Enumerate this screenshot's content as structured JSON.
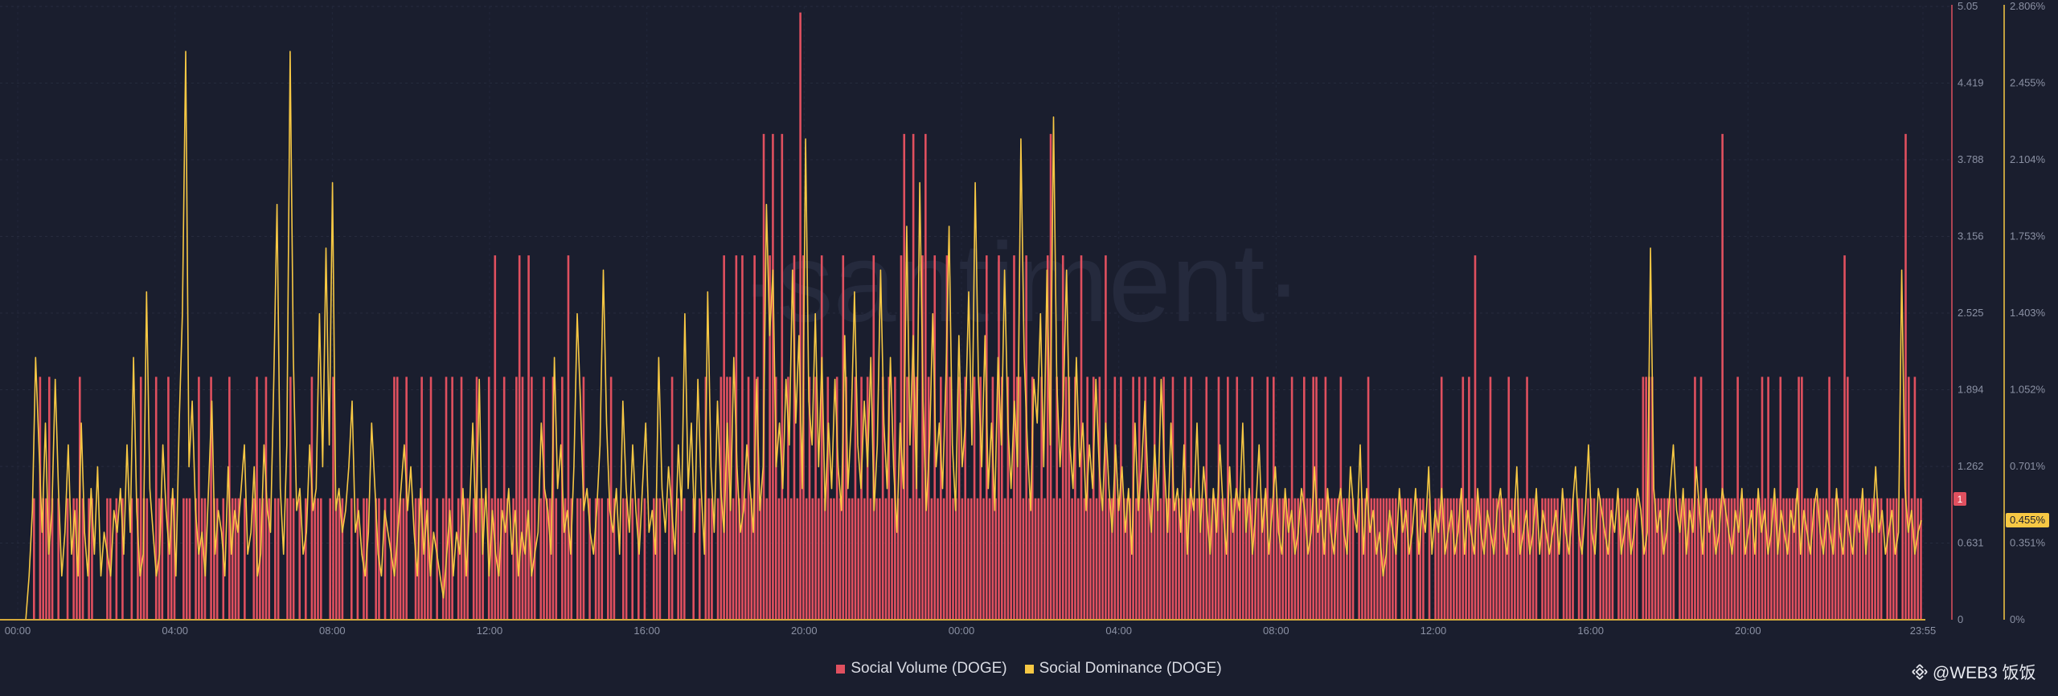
{
  "chart_data": {
    "type": "bar+line",
    "watermark": "·santiment·",
    "x_ticks": [
      "00:00",
      "04:00",
      "08:00",
      "12:00",
      "16:00",
      "20:00",
      "00:00",
      "04:00",
      "08:00",
      "12:00",
      "16:00",
      "20:00",
      "23:55"
    ],
    "left_axis": {
      "ticks": [
        "0",
        "0.631",
        "1.262",
        "1.894",
        "2.525",
        "3.156",
        "3.788",
        "4.419",
        "5.05"
      ],
      "range": [
        0,
        5.05
      ]
    },
    "right_axis": {
      "ticks": [
        "0%",
        "0.351%",
        "0.701%",
        "1.052%",
        "1.403%",
        "1.753%",
        "2.104%",
        "2.455%",
        "2.806%"
      ],
      "range": [
        0,
        2.806
      ]
    },
    "current_values": {
      "volume": "1",
      "dominance": "0.455%"
    },
    "series": [
      {
        "name": "Social Volume (DOGE)",
        "color": "#e0505f",
        "type": "bar",
        "values": [
          0,
          0,
          0,
          0,
          0,
          1,
          0,
          2,
          1,
          1,
          2,
          1,
          0,
          1,
          0,
          0,
          1,
          0,
          1,
          1,
          2,
          1,
          0,
          1,
          1,
          0,
          0,
          0,
          0,
          1,
          1,
          0,
          1,
          0,
          1,
          0,
          0,
          1,
          0,
          1,
          2,
          1,
          1,
          0,
          0,
          2,
          1,
          1,
          0,
          2,
          1,
          1,
          0,
          0,
          1,
          1,
          1,
          0,
          1,
          2,
          1,
          1,
          0,
          2,
          1,
          1,
          0,
          1,
          0,
          2,
          1,
          1,
          1,
          0,
          1,
          0,
          0,
          1,
          2,
          1,
          1,
          2,
          1,
          0,
          1,
          1,
          0,
          0,
          1,
          2,
          1,
          0,
          1,
          0,
          1,
          0,
          2,
          1,
          1,
          1,
          0,
          0,
          1,
          2,
          1,
          1,
          1,
          0,
          0,
          1,
          0,
          1,
          0,
          1,
          1,
          0,
          0,
          1,
          1,
          0,
          1,
          0,
          1,
          2,
          2,
          1,
          1,
          2,
          0,
          0,
          1,
          1,
          2,
          1,
          1,
          2,
          0,
          1,
          0,
          1,
          2,
          1,
          2,
          0,
          1,
          2,
          1,
          1,
          0,
          1,
          2,
          1,
          1,
          0,
          2,
          1,
          3,
          1,
          1,
          2,
          1,
          0,
          1,
          2,
          3,
          2,
          1,
          3,
          2,
          1,
          0,
          1,
          2,
          1,
          1,
          2,
          1,
          0,
          2,
          1,
          3,
          1,
          0,
          1,
          1,
          2,
          0,
          1,
          0,
          1,
          1,
          1,
          0,
          1,
          2,
          1,
          0,
          0,
          1,
          1,
          0,
          1,
          0,
          1,
          0,
          1,
          0,
          0,
          1,
          1,
          1,
          0,
          0,
          1,
          2,
          0,
          1,
          1,
          1,
          0,
          0,
          1,
          0,
          1,
          0,
          2,
          1,
          1,
          0,
          1,
          2,
          3,
          2,
          2,
          1,
          3,
          1,
          3,
          1,
          2,
          1,
          3,
          2,
          1,
          4,
          1,
          3,
          4,
          2,
          1,
          4,
          1,
          2,
          1,
          3,
          1,
          5,
          3,
          1,
          2,
          1,
          2,
          1,
          3,
          1,
          2,
          1,
          1,
          2,
          1,
          3,
          2,
          1,
          1,
          2,
          1,
          2,
          1,
          2,
          1,
          3,
          1,
          1,
          2,
          1,
          2,
          1,
          2,
          1,
          3,
          4,
          2,
          1,
          4,
          2,
          1,
          3,
          4,
          2,
          1,
          3,
          1,
          2,
          1,
          3,
          2,
          1,
          1,
          2,
          1,
          2,
          1,
          1,
          2,
          1,
          2,
          1,
          3,
          1,
          2,
          1,
          3,
          2,
          1,
          2,
          1,
          3,
          2,
          2,
          1,
          3,
          1,
          2,
          1,
          1,
          2,
          1,
          3,
          4,
          1,
          2,
          1,
          3,
          2,
          2,
          1,
          2,
          1,
          3,
          1,
          2,
          1,
          2,
          1,
          2,
          1,
          3,
          1,
          1,
          2,
          1,
          2,
          1,
          1,
          1,
          2,
          1,
          2,
          1,
          2,
          1,
          1,
          2,
          1,
          1,
          2,
          1,
          1,
          2,
          1,
          1,
          1,
          2,
          1,
          2,
          1,
          1,
          1,
          1,
          2,
          1,
          1,
          1,
          2,
          1,
          1,
          2,
          1,
          1,
          2,
          1,
          1,
          1,
          1,
          2,
          1,
          1,
          1,
          1,
          2,
          1,
          2,
          1,
          1,
          1,
          1,
          1,
          2,
          1,
          1,
          1,
          2,
          1,
          1,
          2,
          2,
          1,
          1,
          2,
          1,
          1,
          1,
          1,
          2,
          1,
          1,
          1,
          1,
          0,
          1,
          1,
          1,
          2,
          1,
          1,
          1,
          1,
          1,
          1,
          1,
          1,
          1,
          0,
          1,
          1,
          1,
          1,
          0,
          1,
          1,
          1,
          0,
          1,
          0,
          1,
          1,
          2,
          1,
          1,
          1,
          1,
          1,
          1,
          2,
          1,
          2,
          1,
          3,
          1,
          1,
          1,
          1,
          2,
          1,
          1,
          1,
          1,
          1,
          2,
          1,
          1,
          1,
          1,
          1,
          2,
          1,
          1,
          1,
          0,
          1,
          1,
          1,
          1,
          1,
          1,
          0,
          1,
          1,
          1,
          1,
          0,
          1,
          1,
          0,
          1,
          1,
          1,
          0,
          1,
          1,
          1,
          1,
          1,
          0,
          1,
          1,
          1,
          1,
          1,
          1,
          1,
          0,
          2,
          2,
          2,
          2,
          1,
          1,
          1,
          1,
          1,
          1,
          1,
          0,
          1,
          1,
          1,
          1,
          1,
          2,
          1,
          2,
          1,
          1,
          1,
          1,
          1,
          1,
          4,
          1,
          1,
          1,
          1,
          2,
          1,
          1,
          1,
          1,
          1,
          1,
          1,
          2,
          1,
          2,
          1,
          1,
          1,
          2,
          1,
          1,
          1,
          1,
          1,
          2,
          2,
          1,
          1,
          1,
          1,
          1,
          1,
          1,
          1,
          2,
          1,
          1,
          1,
          1,
          3,
          2,
          1,
          1,
          1,
          1,
          1,
          1,
          1,
          1,
          1,
          1,
          1,
          0,
          1,
          1,
          1,
          1,
          0,
          1,
          4,
          2,
          1,
          2,
          1,
          1
        ]
      },
      {
        "name": "Social Dominance (DOGE)",
        "color": "#f7c844",
        "type": "line",
        "values": [
          0,
          0,
          0,
          0.2,
          0.5,
          1.2,
          0.8,
          0.4,
          0.9,
          0.3,
          0.5,
          1.1,
          0.6,
          0.2,
          0.4,
          0.8,
          0.3,
          0.5,
          0.2,
          0.9,
          0.4,
          0.2,
          0.6,
          0.3,
          0.7,
          0.2,
          0.4,
          0.3,
          0.2,
          0.5,
          0.4,
          0.6,
          0.3,
          0.8,
          0.4,
          1.2,
          0.5,
          0.2,
          0.3,
          1.5,
          0.6,
          0.4,
          0.2,
          0.3,
          0.8,
          0.5,
          0.3,
          0.6,
          0.2,
          0.9,
          1.4,
          2.6,
          0.7,
          1.0,
          0.5,
          0.3,
          0.4,
          0.2,
          0.6,
          1.0,
          0.3,
          0.5,
          0.4,
          0.2,
          0.7,
          0.3,
          0.5,
          0.4,
          0.6,
          0.8,
          0.3,
          0.4,
          0.7,
          0.2,
          0.3,
          0.8,
          0.5,
          0.4,
          1.1,
          1.9,
          0.6,
          0.3,
          0.8,
          2.6,
          1.2,
          0.5,
          0.6,
          0.3,
          0.4,
          0.8,
          0.5,
          0.6,
          1.4,
          0.7,
          1.7,
          0.8,
          2.0,
          0.5,
          0.6,
          0.4,
          0.5,
          0.7,
          1.0,
          0.4,
          0.5,
          0.3,
          0.2,
          0.4,
          0.9,
          0.6,
          0.3,
          0.2,
          0.5,
          0.4,
          0.3,
          0.2,
          0.4,
          0.6,
          0.8,
          0.5,
          0.7,
          0.4,
          0.2,
          0.6,
          0.3,
          0.5,
          0.2,
          0.4,
          0.3,
          0.2,
          0.1,
          0.3,
          0.5,
          0.2,
          0.4,
          0.3,
          0.6,
          0.2,
          0.5,
          0.9,
          0.4,
          1.1,
          0.3,
          0.6,
          0.2,
          0.5,
          0.3,
          0.2,
          0.5,
          0.4,
          0.6,
          0.3,
          0.5,
          0.2,
          0.4,
          0.3,
          0.5,
          0.2,
          0.3,
          0.4,
          0.9,
          0.6,
          0.5,
          0.3,
          1.2,
          0.6,
          0.8,
          0.4,
          0.5,
          0.3,
          0.7,
          1.4,
          1.0,
          0.5,
          0.6,
          0.4,
          0.3,
          0.5,
          0.8,
          1.6,
          0.9,
          0.5,
          0.4,
          0.6,
          0.3,
          1.0,
          0.6,
          0.4,
          0.8,
          0.5,
          0.3,
          0.6,
          0.9,
          0.4,
          0.5,
          0.3,
          1.2,
          0.6,
          0.4,
          0.7,
          0.5,
          0.3,
          0.8,
          0.5,
          1.4,
          0.6,
          0.9,
          0.4,
          1.1,
          0.6,
          0.3,
          1.5,
          0.7,
          0.4,
          1.0,
          0.6,
          0.4,
          0.9,
          0.5,
          1.2,
          0.7,
          0.4,
          0.5,
          0.8,
          0.6,
          0.4,
          1.1,
          0.5,
          0.7,
          1.9,
          1.3,
          1.6,
          0.7,
          0.9,
          0.6,
          1.1,
          0.8,
          1.6,
          0.9,
          1.3,
          0.6,
          2.2,
          1.0,
          0.8,
          1.4,
          0.7,
          1.2,
          0.5,
          0.9,
          0.6,
          1.1,
          0.7,
          0.5,
          1.3,
          0.6,
          0.9,
          1.5,
          0.8,
          0.6,
          1.0,
          0.7,
          1.2,
          0.5,
          0.8,
          1.6,
          0.9,
          0.6,
          1.2,
          0.7,
          0.4,
          0.9,
          0.6,
          1.8,
          0.8,
          1.3,
          0.6,
          2.0,
          1.0,
          0.5,
          0.8,
          1.4,
          0.7,
          0.9,
          0.6,
          1.1,
          1.8,
          0.8,
          0.5,
          1.3,
          0.7,
          0.9,
          1.5,
          0.8,
          2.0,
          1.1,
          0.7,
          1.3,
          0.6,
          0.9,
          0.5,
          1.2,
          0.8,
          1.6,
          0.9,
          0.6,
          1.0,
          0.7,
          2.2,
          1.2,
          0.8,
          0.5,
          1.1,
          0.9,
          1.4,
          0.7,
          1.6,
          0.8,
          2.3,
          1.1,
          0.7,
          1.0,
          1.6,
          0.8,
          0.6,
          1.2,
          0.7,
          0.9,
          0.5,
          0.8,
          0.6,
          1.1,
          0.7,
          0.5,
          0.9,
          0.6,
          0.4,
          0.8,
          0.5,
          0.7,
          0.4,
          0.6,
          0.3,
          0.9,
          0.5,
          0.7,
          1.0,
          0.6,
          0.4,
          0.8,
          0.5,
          1.1,
          0.7,
          0.4,
          0.9,
          0.5,
          0.6,
          0.4,
          0.8,
          0.3,
          0.6,
          0.5,
          0.9,
          0.4,
          0.7,
          0.5,
          0.3,
          0.6,
          0.4,
          0.8,
          0.5,
          0.3,
          0.7,
          0.4,
          0.6,
          0.5,
          0.9,
          0.4,
          0.6,
          0.3,
          0.5,
          0.8,
          0.4,
          0.6,
          0.3,
          0.5,
          0.7,
          0.4,
          0.3,
          0.6,
          0.4,
          0.5,
          0.3,
          0.4,
          0.6,
          0.5,
          0.3,
          0.4,
          0.7,
          0.4,
          0.5,
          0.3,
          0.6,
          0.4,
          0.3,
          0.5,
          0.6,
          0.4,
          0.3,
          0.7,
          0.5,
          0.4,
          0.8,
          0.3,
          0.6,
          0.4,
          0.5,
          0.3,
          0.4,
          0.2,
          0.3,
          0.5,
          0.4,
          0.3,
          0.6,
          0.4,
          0.5,
          0.3,
          0.4,
          0.6,
          0.3,
          0.5,
          0.4,
          0.7,
          0.3,
          0.5,
          0.4,
          0.6,
          0.3,
          0.4,
          0.5,
          0.3,
          0.4,
          0.6,
          0.3,
          0.5,
          0.4,
          0.3,
          0.6,
          0.4,
          0.3,
          0.5,
          0.4,
          0.3,
          0.5,
          0.6,
          0.4,
          0.3,
          0.5,
          0.4,
          0.7,
          0.3,
          0.4,
          0.5,
          0.3,
          0.4,
          0.6,
          0.3,
          0.5,
          0.4,
          0.3,
          0.4,
          0.5,
          0.3,
          0.6,
          0.4,
          0.3,
          0.5,
          0.7,
          0.4,
          0.3,
          0.5,
          0.8,
          0.4,
          0.3,
          0.6,
          0.5,
          0.4,
          0.3,
          0.5,
          0.4,
          0.6,
          0.3,
          0.4,
          0.5,
          0.3,
          0.4,
          0.6,
          0.5,
          0.3,
          0.4,
          1.7,
          0.6,
          0.4,
          0.5,
          0.3,
          0.4,
          0.6,
          0.8,
          0.5,
          0.4,
          0.6,
          0.3,
          0.5,
          0.4,
          0.7,
          0.5,
          0.3,
          0.6,
          0.4,
          0.5,
          0.3,
          0.4,
          0.6,
          0.5,
          0.4,
          0.3,
          0.5,
          0.4,
          0.6,
          0.3,
          0.4,
          0.5,
          0.3,
          0.6,
          0.4,
          0.5,
          0.3,
          0.4,
          0.6,
          0.3,
          0.5,
          0.4,
          0.3,
          0.5,
          0.4,
          0.6,
          0.3,
          0.5,
          0.4,
          0.3,
          0.5,
          0.6,
          0.4,
          0.3,
          0.5,
          0.4,
          0.3,
          0.6,
          0.4,
          0.3,
          0.5,
          0.4,
          0.3,
          0.5,
          0.4,
          0.6,
          0.3,
          0.5,
          0.4,
          0.7,
          0.4,
          0.5,
          0.3,
          0.4,
          0.5,
          0.3,
          0.4,
          1.6,
          0.6,
          0.4,
          0.5,
          0.3,
          0.4,
          0.455
        ]
      }
    ]
  },
  "legend": [
    {
      "label": "Social Volume (DOGE)",
      "color": "#e0505f"
    },
    {
      "label": "Social Dominance (DOGE)",
      "color": "#f7c844"
    }
  ],
  "watermark_handle": "@WEB3 饭饭"
}
